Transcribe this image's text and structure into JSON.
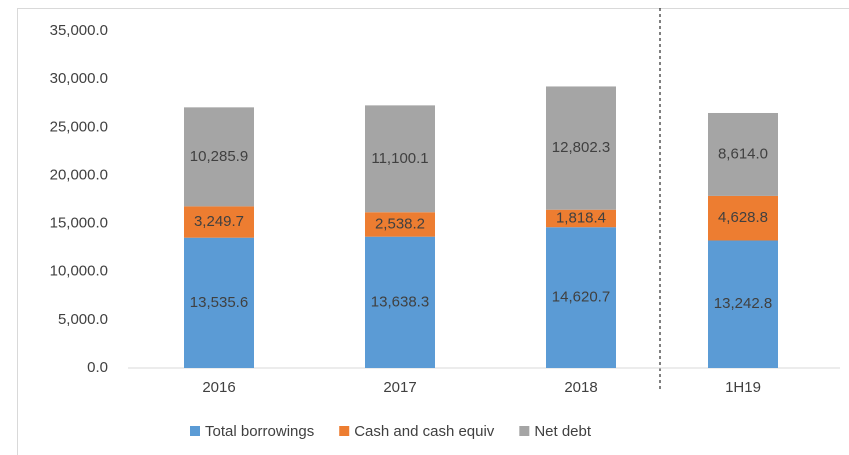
{
  "chart_data": {
    "type": "stacked_bar",
    "categories": [
      "2016",
      "2017",
      "2018",
      "1H19"
    ],
    "series": [
      {
        "name": "Total borrowings",
        "color": "#5b9bd5",
        "values": [
          13535.6,
          13638.3,
          14620.7,
          13242.8
        ],
        "value_labels": [
          "13,535.6",
          "13,638.3",
          "14,620.7",
          "13,242.8"
        ]
      },
      {
        "name": "Cash and cash equiv",
        "color": "#ed7d31",
        "values": [
          3249.7,
          2538.2,
          1818.4,
          4628.8
        ],
        "value_labels": [
          "3,249.7",
          "2,538.2",
          "1,818.4",
          "4,628.8"
        ]
      },
      {
        "name": "Net debt",
        "color": "#a5a5a5",
        "values": [
          10285.9,
          11100.1,
          12802.3,
          8614.0
        ],
        "value_labels": [
          "10,285.9",
          "11,100.1",
          "12,802.3",
          "8,614.0"
        ]
      }
    ],
    "ylim": [
      0,
      35000
    ],
    "yticks": [
      {
        "value": 0,
        "label": "0.0"
      },
      {
        "value": 5000,
        "label": "5,000.0"
      },
      {
        "value": 10000,
        "label": "10,000.0"
      },
      {
        "value": 15000,
        "label": "15,000.0"
      },
      {
        "value": 20000,
        "label": "20,000.0"
      },
      {
        "value": 25000,
        "label": "25,000.0"
      },
      {
        "value": 30000,
        "label": "30,000.0"
      },
      {
        "value": 35000,
        "label": "35,000.0"
      }
    ],
    "grid": false,
    "legend": "bottom"
  }
}
